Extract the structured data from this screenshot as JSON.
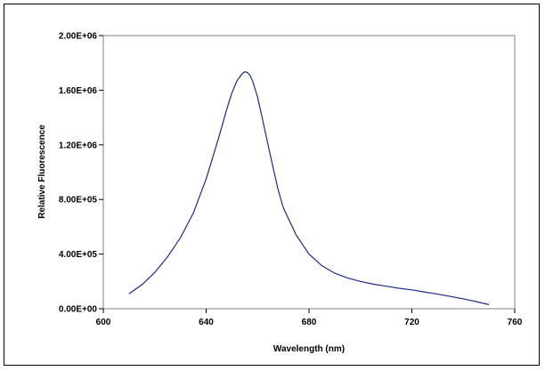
{
  "chart_data": {
    "type": "line",
    "title": "",
    "xlabel": "Wavelength (nm)",
    "ylabel": "Relative Fluorescence",
    "xlim": [
      600,
      760
    ],
    "ylim": [
      0,
      2000000
    ],
    "x_ticks": [
      600,
      640,
      680,
      720,
      760
    ],
    "y_ticks": [
      0,
      400000,
      800000,
      1200000,
      1600000,
      2000000
    ],
    "x_tick_labels": [
      "600",
      "640",
      "680",
      "720",
      "760"
    ],
    "y_tick_labels": [
      "0.00E+00",
      "4.00E+05",
      "8.00E+05",
      "1.20E+06",
      "1.60E+06",
      "2.00E+06"
    ],
    "grid": false,
    "legend": "none",
    "line_color": "#1f2a8c",
    "series": [
      {
        "x": [
          610,
          615,
          620,
          625,
          630,
          635,
          640,
          645,
          648,
          650,
          652,
          654,
          655,
          656,
          657,
          658,
          660,
          662,
          665,
          668,
          670,
          675,
          680,
          685,
          690,
          695,
          700,
          705,
          710,
          715,
          720,
          725,
          730,
          735,
          740,
          745,
          750
        ],
        "values": [
          110000,
          175000,
          265000,
          380000,
          520000,
          700000,
          950000,
          1260000,
          1460000,
          1580000,
          1670000,
          1720000,
          1735000,
          1730000,
          1710000,
          1670000,
          1550000,
          1380000,
          1120000,
          870000,
          740000,
          540000,
          400000,
          315000,
          260000,
          225000,
          200000,
          180000,
          165000,
          150000,
          138000,
          122000,
          107000,
          90000,
          72000,
          52000,
          30000
        ]
      }
    ]
  }
}
